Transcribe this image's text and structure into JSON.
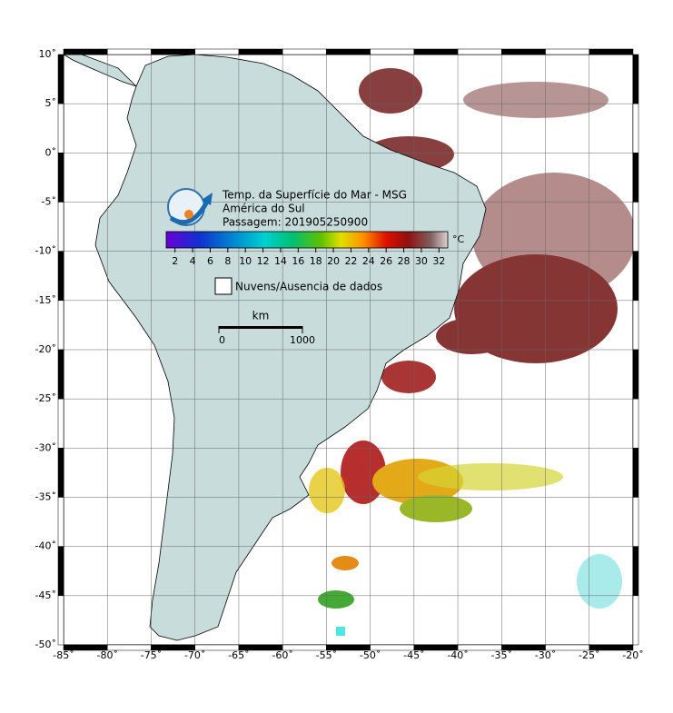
{
  "map": {
    "title_lines": [
      "Temp. da Superfície do Mar - MSG",
      "América do Sul",
      "Passagem: 201905250900"
    ],
    "colorbar": {
      "range": [
        1,
        33
      ],
      "ticks": [
        2,
        4,
        6,
        8,
        10,
        12,
        14,
        16,
        18,
        20,
        22,
        24,
        26,
        28,
        30,
        32
      ],
      "unit": "°C"
    },
    "legend": "Nuvens/Ausencia de dados",
    "scale": {
      "unit": "km",
      "ticks": [
        0,
        1000
      ]
    },
    "lon_range": [
      -85,
      -20
    ],
    "lat_range": [
      -50,
      10
    ],
    "lat_ticks": [
      {
        "value": 10,
        "label": "10˚"
      },
      {
        "value": 5,
        "label": "5˚"
      },
      {
        "value": 0,
        "label": "0˚"
      },
      {
        "value": -5,
        "label": "-5˚"
      },
      {
        "value": -10,
        "label": "-10˚"
      },
      {
        "value": -15,
        "label": "-15˚"
      },
      {
        "value": -20,
        "label": "-20˚"
      },
      {
        "value": -25,
        "label": "-25˚"
      },
      {
        "value": -30,
        "label": "-30˚"
      },
      {
        "value": -35,
        "label": "-35˚"
      },
      {
        "value": -40,
        "label": "-40˚"
      },
      {
        "value": -45,
        "label": "-45˚"
      },
      {
        "value": -50,
        "label": "-50˚"
      }
    ],
    "lon_ticks": [
      {
        "value": -85,
        "label": "-85˚"
      },
      {
        "value": -80,
        "label": "-80˚"
      },
      {
        "value": -75,
        "label": "-75˚"
      },
      {
        "value": -70,
        "label": "-70˚"
      },
      {
        "value": -65,
        "label": "-65˚"
      },
      {
        "value": -60,
        "label": "-60˚"
      },
      {
        "value": -55,
        "label": "-55˚"
      },
      {
        "value": -50,
        "label": "-50˚"
      },
      {
        "value": -45,
        "label": "-45˚"
      },
      {
        "value": -40,
        "label": "-40˚"
      },
      {
        "value": -35,
        "label": "-35˚"
      },
      {
        "value": -30,
        "label": "-30˚"
      },
      {
        "value": -25,
        "label": "-25˚"
      },
      {
        "value": -20,
        "label": "-20˚"
      }
    ]
  }
}
